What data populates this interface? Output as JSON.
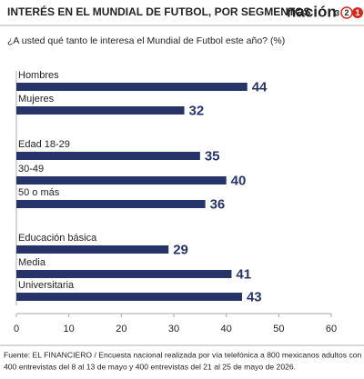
{
  "chart_data": {
    "type": "bar",
    "orientation": "horizontal",
    "title": "INTERÉS EN EL MUNDIAL DE FUTBOL, POR SEGMENTOS",
    "subtitle": "¿A usted qué tanto le interesa el Mundial de Futbol este año? (%)",
    "brand": {
      "name": "nación",
      "number": "3",
      "circled": [
        "2",
        "1"
      ]
    },
    "categories": [
      "Hombres",
      "Mujeres",
      "Edad 18-29",
      "30-49",
      "50 o más",
      "Educación básica",
      "Media",
      "Universitaria"
    ],
    "values": [
      44,
      32,
      35,
      40,
      36,
      29,
      41,
      43
    ],
    "color": "#26346a",
    "xlim": [
      0,
      60
    ],
    "xticks": [
      0,
      10,
      20,
      30,
      40,
      50,
      60
    ],
    "grid": false,
    "source": [
      "Fuente: EL FINANCIERO / Encuesta nacional realizada por vía telefónica a 800 mexicanos adultos con",
      "400 entrevistas del 8 al 13 de mayo y 400 entrevistas del 21 al 25 de mayo de 2026."
    ]
  }
}
